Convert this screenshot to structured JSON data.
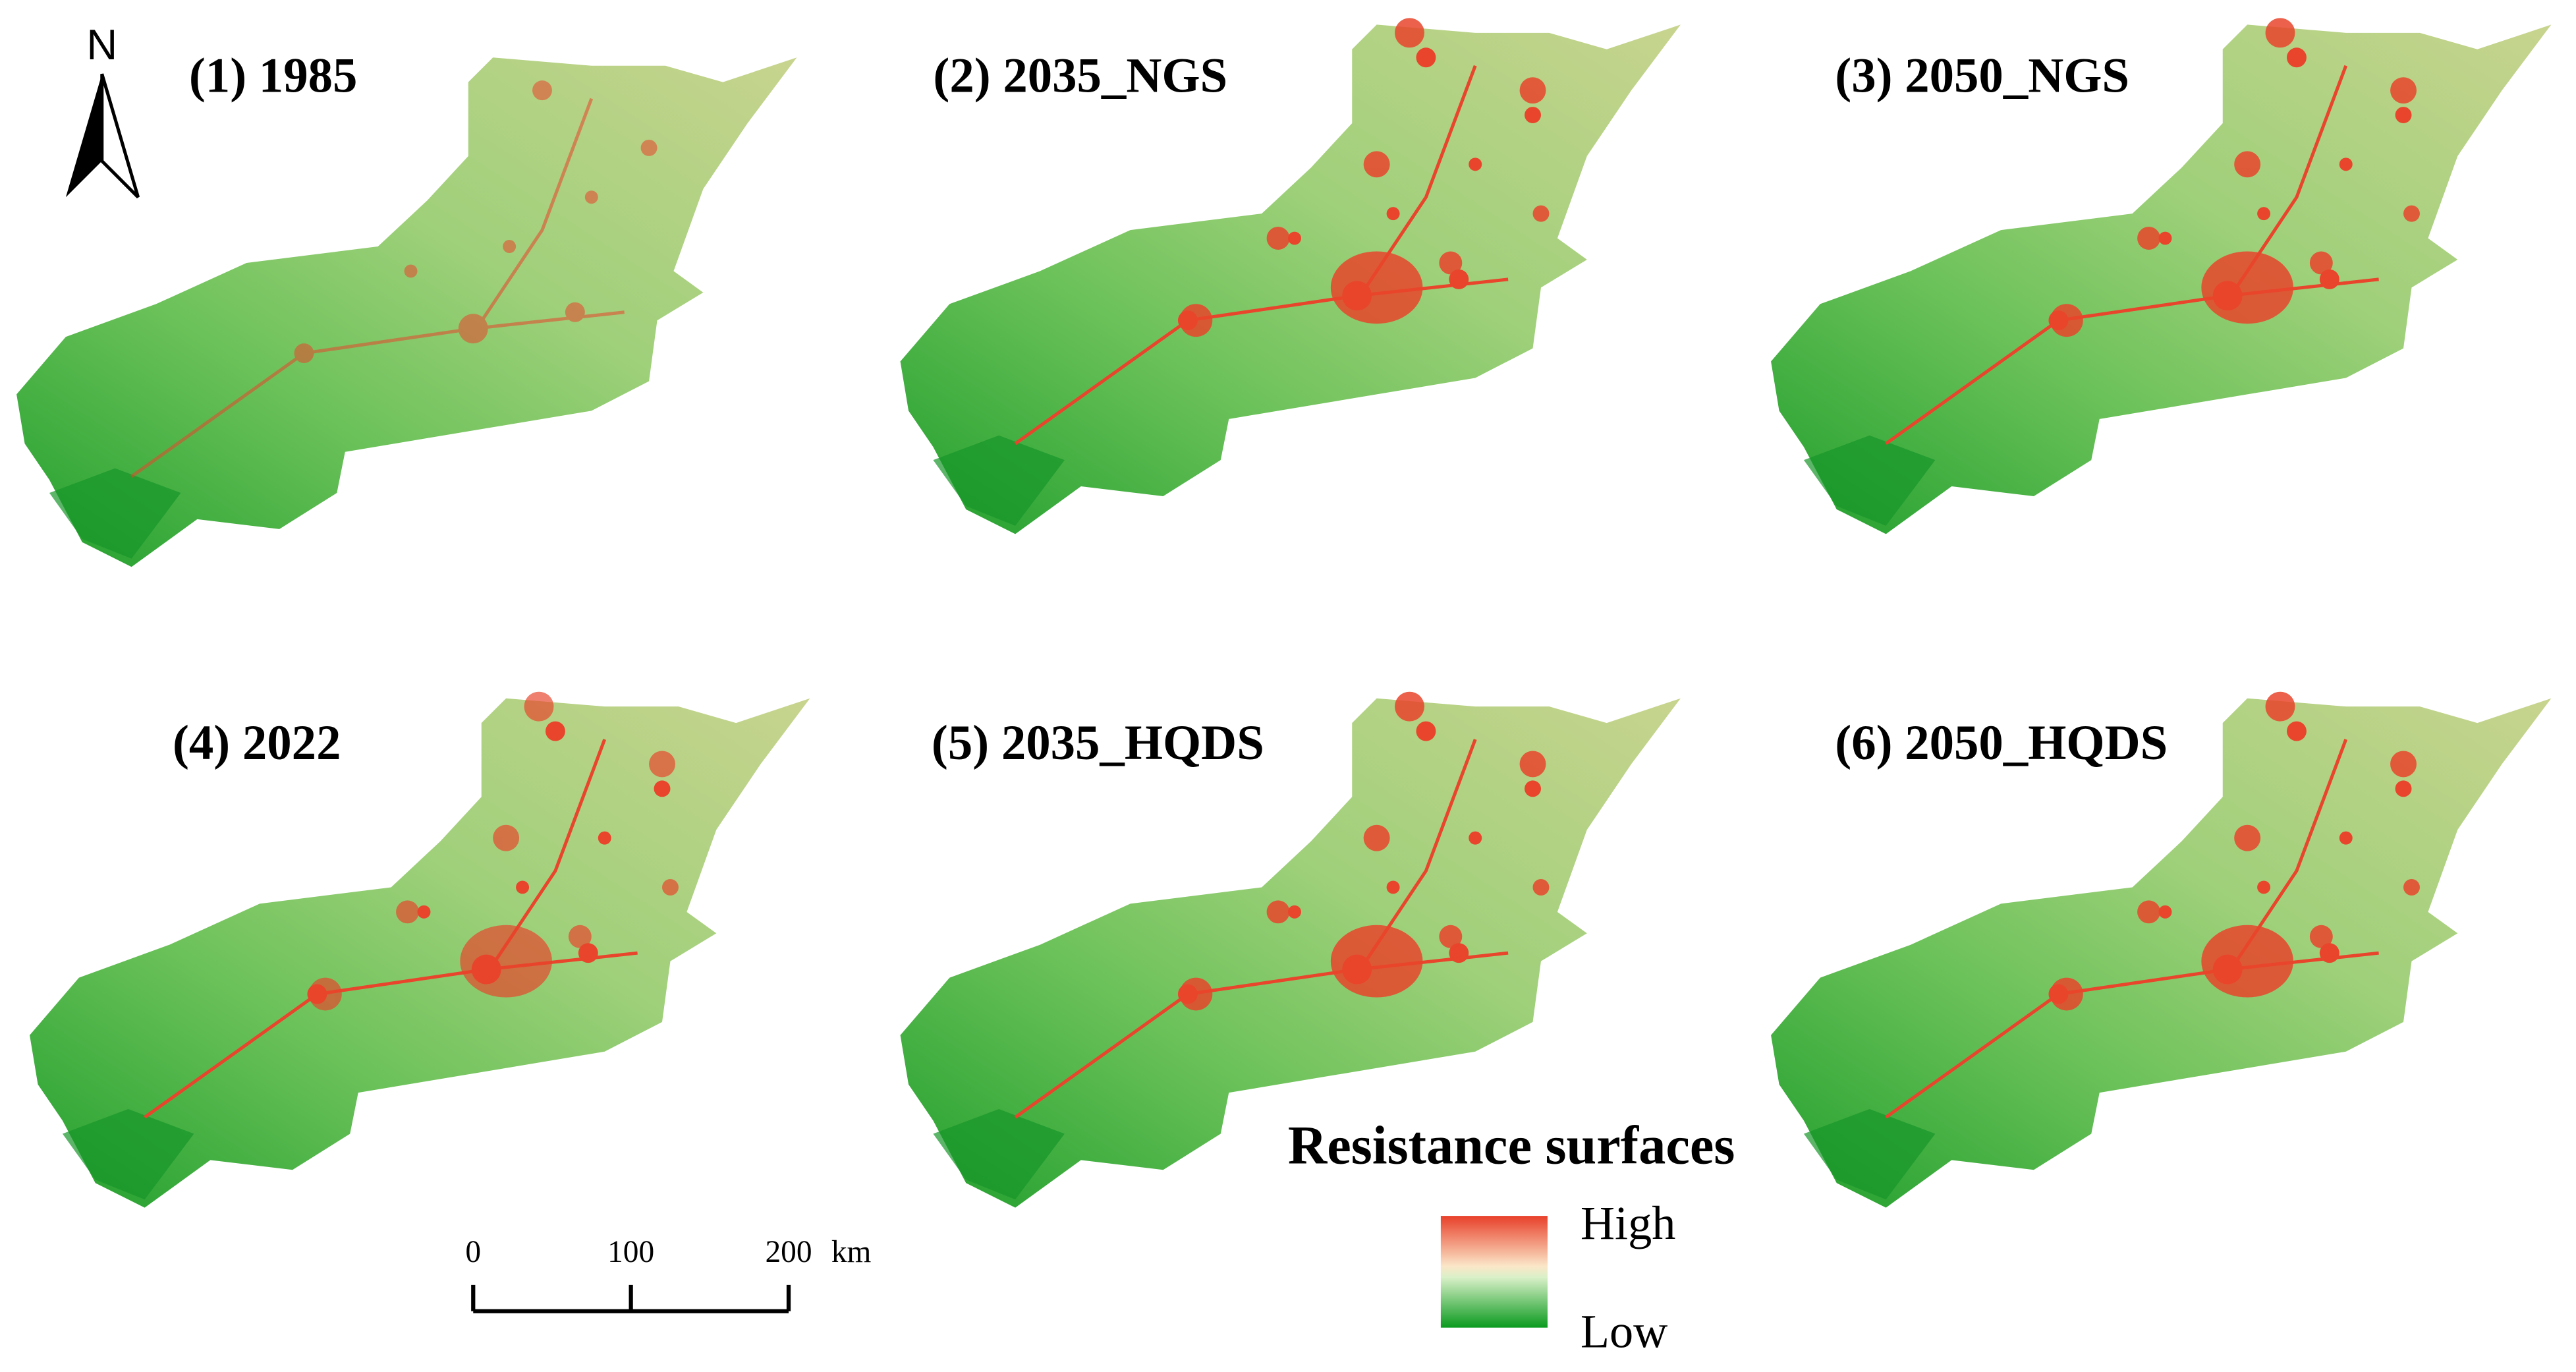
{
  "north_arrow": "N",
  "panels": [
    {
      "label": "(1) 1985"
    },
    {
      "label": "(2) 2035_NGS"
    },
    {
      "label": "(3) 2050_NGS"
    },
    {
      "label": "(4) 2022"
    },
    {
      "label": "(5) 2035_HQDS"
    },
    {
      "label": "(6) 2050_HQDS"
    }
  ],
  "scale_bar": {
    "ticks": [
      0,
      100,
      200
    ],
    "unit": "km"
  },
  "legend": {
    "title": "Resistance surfaces",
    "high": "High",
    "low": "Low"
  }
}
